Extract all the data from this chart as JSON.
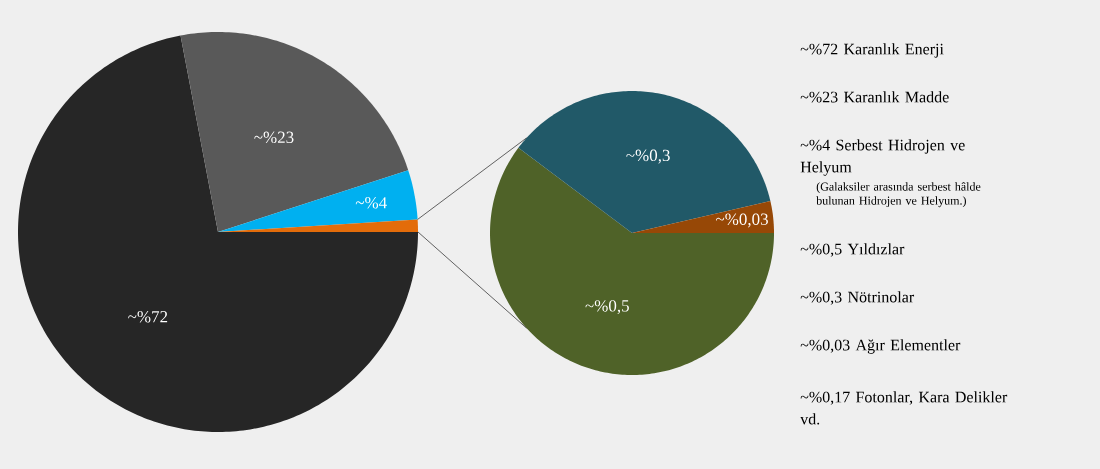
{
  "chart_data": [
    {
      "type": "pie",
      "categories": [
        "~%72",
        "~%23",
        "~%4",
        null
      ],
      "values": [
        72,
        23,
        4,
        1
      ],
      "colors": [
        "#262626",
        "#595959",
        "#00b0f0",
        "#e36c0a"
      ]
    },
    {
      "type": "pie",
      "categories": [
        "~%0,5",
        "~%0,3",
        "~%0,03"
      ],
      "values": [
        0.5,
        0.3,
        0.03
      ],
      "colors": [
        "#4f6228",
        "#215968",
        "#974806"
      ]
    },
    {
      "type": "other",
      "annotations": [
        "~%72 Karanlık Enerji",
        "~%23 Karanlık Madde",
        "~%4 Serbest Hidrojen ve Helyum",
        "(Galaksiler arasında serbest hâlde bulunan Hidrojen ve Helyum.)",
        "~%0,5 Yıldızlar",
        "~%0,3 Nötrinolar",
        "~%0,03 Ağır Elementler",
        "~%0,17 Fotonlar, Kara Delikler vd."
      ]
    }
  ]
}
